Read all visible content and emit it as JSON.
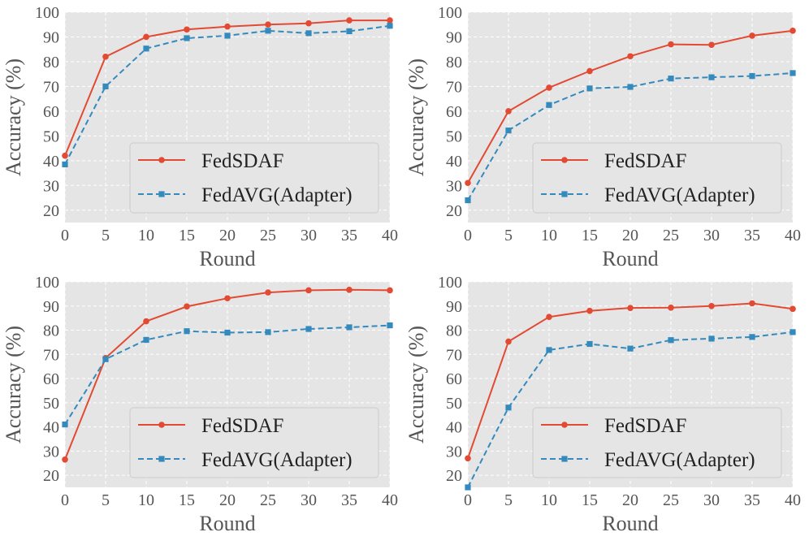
{
  "style": {
    "background": "#E5E5E5",
    "grid_color": "#FFFFFF",
    "tick_text_color": "#555555",
    "legend_background": "#E5E5E5",
    "legend_border": "#CCCCCC"
  },
  "chart_data": [
    {
      "type": "line",
      "xlabel": "Round",
      "ylabel": "Accuracy (%)",
      "xlim": [
        0,
        40
      ],
      "ylim": [
        15,
        100
      ],
      "xticks": [
        0,
        5,
        10,
        15,
        20,
        25,
        30,
        35,
        40
      ],
      "yticks": [
        20,
        30,
        40,
        50,
        60,
        70,
        80,
        90,
        100
      ],
      "grid": true,
      "legend_position": "lower-right",
      "x": [
        0,
        5,
        10,
        15,
        20,
        25,
        30,
        35,
        40
      ],
      "series": [
        {
          "name": "FedSDAF",
          "color": "#E24A33",
          "marker": "circle",
          "line": "solid",
          "values": [
            42,
            82,
            90,
            93,
            94.2,
            95,
            95.5,
            96.7,
            96.7
          ]
        },
        {
          "name": "FedAVG(Adapter)",
          "color": "#348ABD",
          "marker": "square",
          "line": "dashed",
          "values": [
            38.5,
            70,
            85.3,
            89.5,
            90.5,
            92.5,
            91.5,
            92.3,
            94.5
          ]
        }
      ]
    },
    {
      "type": "line",
      "xlabel": "Round",
      "ylabel": "Accuracy (%)",
      "xlim": [
        0,
        40
      ],
      "ylim": [
        15,
        100
      ],
      "xticks": [
        0,
        5,
        10,
        15,
        20,
        25,
        30,
        35,
        40
      ],
      "yticks": [
        20,
        30,
        40,
        50,
        60,
        70,
        80,
        90,
        100
      ],
      "grid": true,
      "legend_position": "lower-right",
      "x": [
        0,
        5,
        10,
        15,
        20,
        25,
        30,
        35,
        40
      ],
      "series": [
        {
          "name": "FedSDAF",
          "color": "#E24A33",
          "marker": "circle",
          "line": "solid",
          "values": [
            31,
            60,
            69.5,
            76.2,
            82.2,
            87,
            86.8,
            90.5,
            92.5
          ]
        },
        {
          "name": "FedAVG(Adapter)",
          "color": "#348ABD",
          "marker": "square",
          "line": "dashed",
          "values": [
            24,
            52.2,
            62.5,
            69.2,
            69.8,
            73.2,
            73.7,
            74.2,
            75.4
          ]
        }
      ]
    },
    {
      "type": "line",
      "xlabel": "Round",
      "ylabel": "Accuracy (%)",
      "xlim": [
        0,
        40
      ],
      "ylim": [
        15,
        100
      ],
      "xticks": [
        0,
        5,
        10,
        15,
        20,
        25,
        30,
        35,
        40
      ],
      "yticks": [
        20,
        30,
        40,
        50,
        60,
        70,
        80,
        90,
        100
      ],
      "grid": true,
      "legend_position": "lower-right",
      "x": [
        0,
        5,
        10,
        15,
        20,
        25,
        30,
        35,
        40
      ],
      "series": [
        {
          "name": "FedSDAF",
          "color": "#E24A33",
          "marker": "circle",
          "line": "solid",
          "values": [
            26.5,
            68.5,
            83.7,
            89.8,
            93.2,
            95.6,
            96.5,
            96.7,
            96.5
          ]
        },
        {
          "name": "FedAVG(Adapter)",
          "color": "#348ABD",
          "marker": "square",
          "line": "dashed",
          "values": [
            41,
            68,
            76,
            79.6,
            79,
            79.2,
            80.5,
            81.2,
            82
          ]
        }
      ]
    },
    {
      "type": "line",
      "xlabel": "Round",
      "ylabel": "Accuracy (%)",
      "xlim": [
        0,
        40
      ],
      "ylim": [
        15,
        100
      ],
      "xticks": [
        0,
        5,
        10,
        15,
        20,
        25,
        30,
        35,
        40
      ],
      "yticks": [
        20,
        30,
        40,
        50,
        60,
        70,
        80,
        90,
        100
      ],
      "grid": true,
      "legend_position": "lower-right",
      "x": [
        0,
        5,
        10,
        15,
        20,
        25,
        30,
        35,
        40
      ],
      "series": [
        {
          "name": "FedSDAF",
          "color": "#E24A33",
          "marker": "circle",
          "line": "solid",
          "values": [
            27,
            75.3,
            85.5,
            88,
            89.2,
            89.3,
            90,
            91.1,
            88.8
          ]
        },
        {
          "name": "FedAVG(Adapter)",
          "color": "#348ABD",
          "marker": "square",
          "line": "dashed",
          "values": [
            15,
            48,
            71.8,
            74.3,
            72.4,
            75.9,
            76.5,
            77.2,
            79.2
          ]
        }
      ]
    }
  ]
}
